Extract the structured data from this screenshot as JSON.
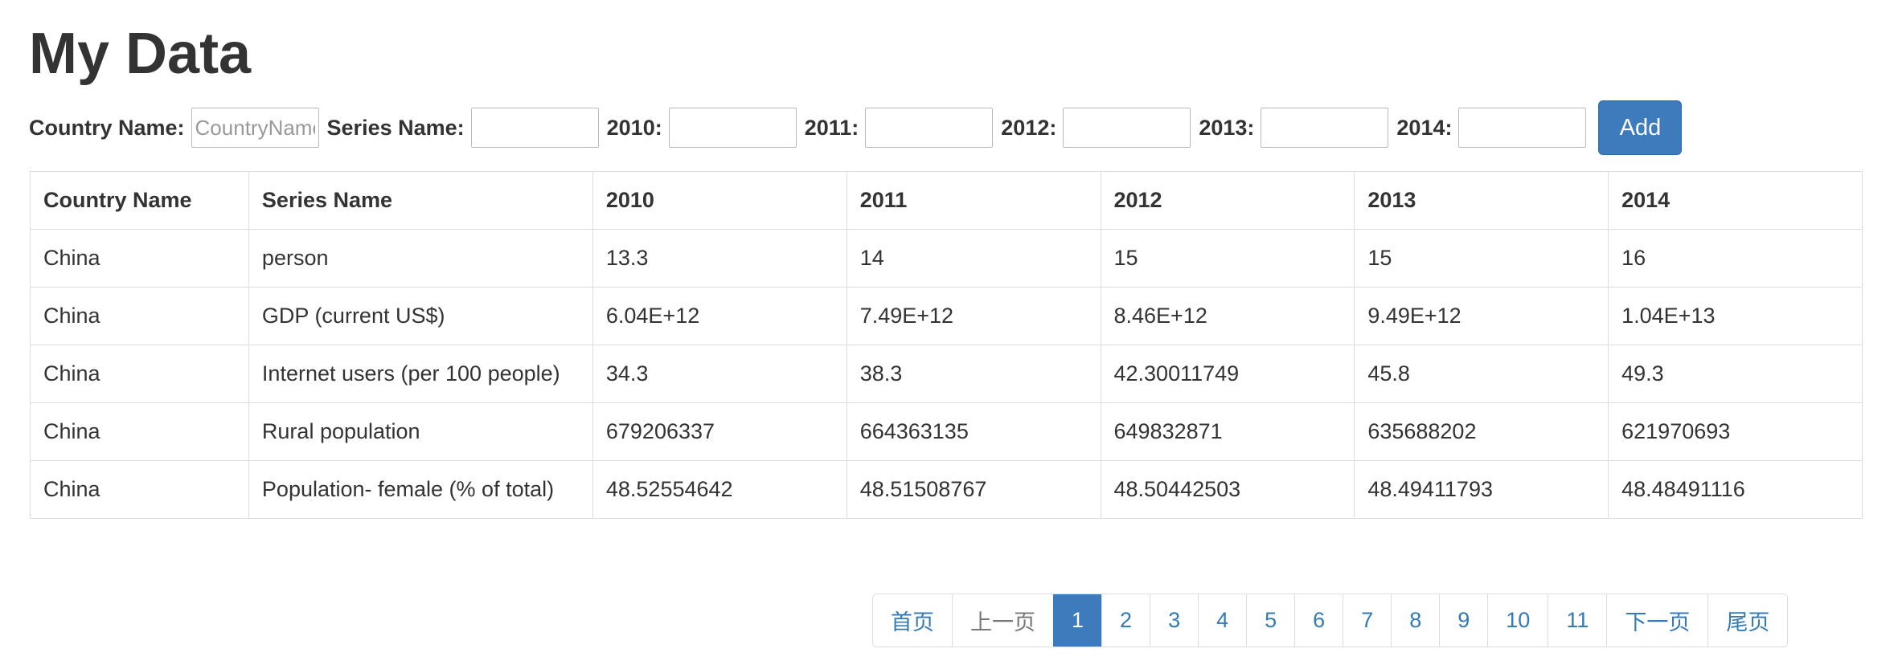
{
  "page": {
    "title": "My Data"
  },
  "form": {
    "country_label": "Country Name:",
    "country_placeholder": "CountryName",
    "country_value": "",
    "series_label": "Series Name:",
    "series_value": "",
    "y2010_label": "2010:",
    "y2011_label": "2011:",
    "y2012_label": "2012:",
    "y2013_label": "2013:",
    "y2014_label": "2014:",
    "add_label": "Add"
  },
  "colors": {
    "accent": "#3e7bbd",
    "link": "#337ab7",
    "border": "#dddddd",
    "text": "#333333"
  },
  "table": {
    "headers": [
      "Country Name",
      "Series Name",
      "2010",
      "2011",
      "2012",
      "2013",
      "2014"
    ],
    "rows": [
      [
        "China",
        "person",
        "13.3",
        "14",
        "15",
        "15",
        "16"
      ],
      [
        "China",
        "GDP (current US$)",
        "6.04E+12",
        "7.49E+12",
        "8.46E+12",
        "9.49E+12",
        "1.04E+13"
      ],
      [
        "China",
        "Internet users (per 100 people)",
        "34.3",
        "38.3",
        "42.30011749",
        "45.8",
        "49.3"
      ],
      [
        "China",
        "Rural population",
        "679206337",
        "664363135",
        "649832871",
        "635688202",
        "621970693"
      ],
      [
        "China",
        "Population- female (% of total)",
        "48.52554642",
        "48.51508767",
        "48.50442503",
        "48.49411793",
        "48.48491116"
      ]
    ]
  },
  "pagination": {
    "first": "首页",
    "prev": "上一页",
    "pages": [
      "1",
      "2",
      "3",
      "4",
      "5",
      "6",
      "7",
      "8",
      "9",
      "10",
      "11"
    ],
    "current": "1",
    "next": "下一页",
    "last": "尾页"
  }
}
